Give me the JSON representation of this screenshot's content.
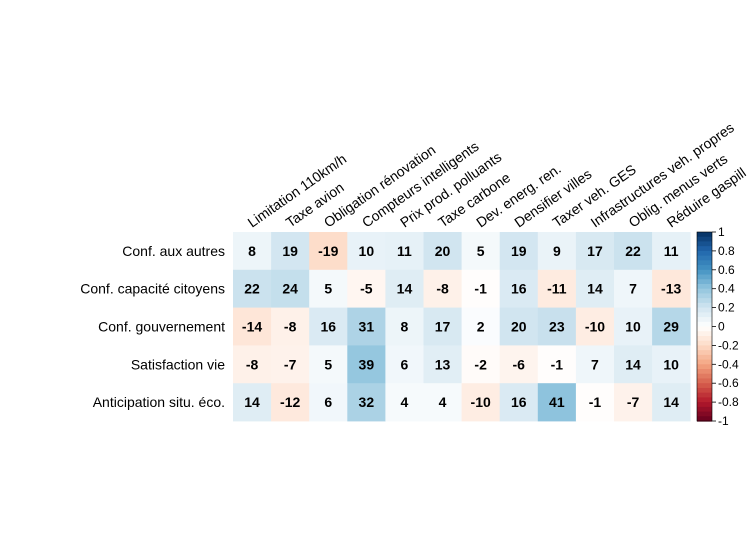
{
  "chart_data": {
    "type": "heatmap",
    "columns": [
      "Limitation 110km/h",
      "Taxe avion",
      "Obligation rénovation",
      "Compteurs intelligents",
      "Prix prod. polluants",
      "Taxe carbone",
      "Dev. energ. ren.",
      "Densifier villes",
      "Taxer veh. GES",
      "Infrastructures veh. propres",
      "Oblig. menus verts",
      "Réduire gaspill"
    ],
    "rows": [
      "Conf. aux autres",
      "Conf. capacité citoyens",
      "Conf. gouvernement",
      "Satisfaction vie",
      "Anticipation situ. éco."
    ],
    "values": [
      [
        8,
        19,
        -19,
        10,
        11,
        20,
        5,
        19,
        9,
        17,
        22,
        11
      ],
      [
        22,
        24,
        5,
        -5,
        14,
        -8,
        -1,
        16,
        -11,
        14,
        7,
        -13
      ],
      [
        -14,
        -8,
        16,
        31,
        8,
        17,
        2,
        20,
        23,
        -10,
        10,
        29
      ],
      [
        -8,
        -7,
        5,
        39,
        6,
        13,
        -2,
        -6,
        -1,
        7,
        14,
        10
      ],
      [
        14,
        -12,
        6,
        32,
        4,
        4,
        -10,
        16,
        41,
        -1,
        -7,
        14
      ]
    ],
    "color_scale": {
      "range": [
        -1,
        1
      ],
      "ticks": [
        "1",
        "0.8",
        "0.6",
        "0.4",
        "0.2",
        "0",
        "-0.2",
        "-0.4",
        "-0.6",
        "-0.8",
        "-1"
      ],
      "low_color": "#67001F",
      "mid_color": "#FFFFFF",
      "high_color": "#053061"
    },
    "legend_position": "right"
  }
}
